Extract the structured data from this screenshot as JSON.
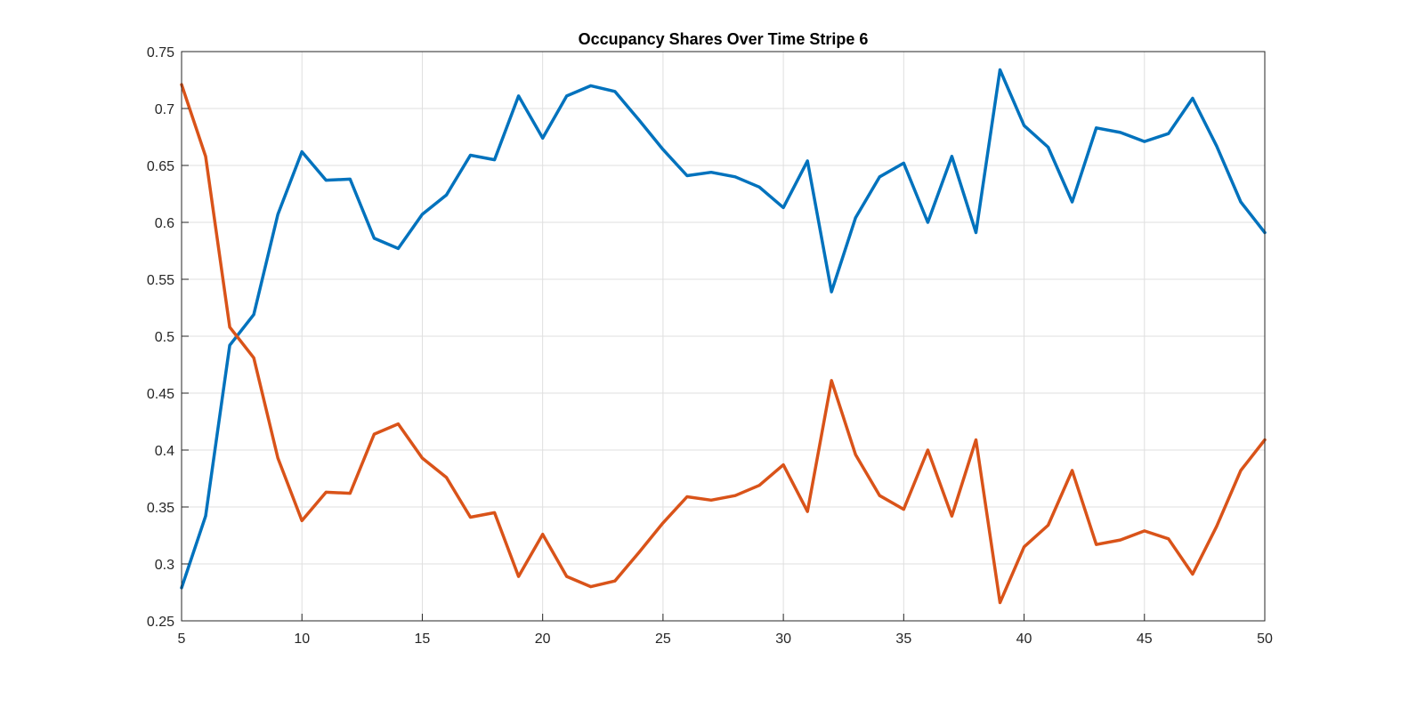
{
  "chart_data": {
    "type": "line",
    "title": "Occupancy Shares Over Time Stripe 6",
    "xlabel": "",
    "ylabel": "",
    "xlim": [
      5,
      50
    ],
    "ylim": [
      0.25,
      0.75
    ],
    "grid": true,
    "legend": "none",
    "x_ticks": [
      "5",
      "10",
      "15",
      "20",
      "25",
      "30",
      "35",
      "40",
      "45",
      "50"
    ],
    "y_ticks": [
      "0.25",
      "0.3",
      "0.35",
      "0.4",
      "0.45",
      "0.5",
      "0.55",
      "0.6",
      "0.65",
      "0.7",
      "0.75"
    ],
    "x": [
      5,
      6,
      7,
      8,
      9,
      10,
      11,
      12,
      13,
      14,
      15,
      16,
      17,
      18,
      19,
      20,
      21,
      22,
      23,
      24,
      25,
      26,
      27,
      28,
      29,
      30,
      31,
      32,
      33,
      34,
      35,
      36,
      37,
      38,
      39,
      40,
      41,
      42,
      43,
      44,
      45,
      46,
      47,
      48,
      49,
      50
    ],
    "series": [
      {
        "color": "#0072BD",
        "values": [
          0.279,
          0.342,
          0.492,
          0.519,
          0.607,
          0.662,
          0.637,
          0.638,
          0.586,
          0.577,
          0.607,
          0.624,
          0.659,
          0.655,
          0.711,
          0.674,
          0.711,
          0.72,
          0.715,
          0.69,
          0.664,
          0.641,
          0.644,
          0.64,
          0.631,
          0.613,
          0.654,
          0.539,
          0.604,
          0.64,
          0.652,
          0.6,
          0.658,
          0.591,
          0.734,
          0.685,
          0.666,
          0.618,
          0.683,
          0.679,
          0.671,
          0.678,
          0.709,
          0.667,
          0.618,
          0.591
        ]
      },
      {
        "color": "#D95319",
        "values": [
          0.721,
          0.658,
          0.508,
          0.481,
          0.393,
          0.338,
          0.363,
          0.362,
          0.414,
          0.423,
          0.393,
          0.376,
          0.341,
          0.345,
          0.289,
          0.326,
          0.289,
          0.28,
          0.285,
          0.31,
          0.336,
          0.359,
          0.356,
          0.36,
          0.369,
          0.387,
          0.346,
          0.461,
          0.396,
          0.36,
          0.348,
          0.4,
          0.342,
          0.409,
          0.266,
          0.315,
          0.334,
          0.382,
          0.317,
          0.321,
          0.329,
          0.322,
          0.291,
          0.333,
          0.382,
          0.409
        ]
      }
    ]
  }
}
